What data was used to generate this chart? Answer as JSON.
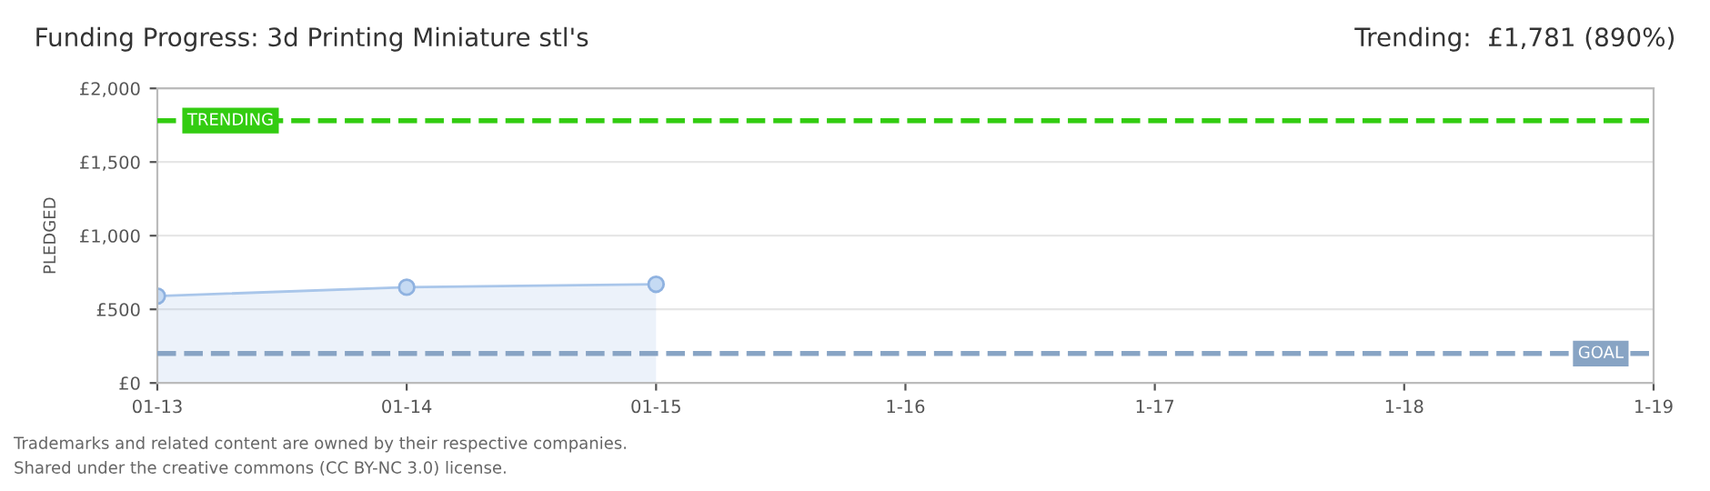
{
  "chart_data": {
    "type": "area",
    "title": "Funding Progress: 3d Printing Miniature stl's",
    "ylabel": "PLEDGED",
    "categories": [
      "01-13",
      "01-14",
      "01-15",
      "1-16",
      "1-17",
      "1-18",
      "1-19"
    ],
    "series": [
      {
        "color": "#a9c6ea",
        "values": [
          590,
          650,
          670,
          null,
          null,
          null,
          null
        ]
      }
    ],
    "ylim": [
      0,
      2000
    ],
    "yticks": [
      {
        "value": 0,
        "label": "£0"
      },
      {
        "value": 500,
        "label": "£500"
      },
      {
        "value": 1000,
        "label": "£1,000"
      },
      {
        "value": 1500,
        "label": "£1,500"
      },
      {
        "value": 2000,
        "label": "£2,000"
      }
    ],
    "ref_lines": [
      {
        "axis": "y",
        "value": 1781,
        "label": "TRENDING",
        "color": "#33cc11",
        "line_style": "dashed"
      },
      {
        "axis": "y",
        "value": 200,
        "label": "GOAL",
        "color": "#88a4c4",
        "line_style": "dashed"
      }
    ],
    "annotations": [
      "Trending:  £1,781 (890%)",
      "Trademarks and related content are owned by their respective companies.",
      "Shared under the creative commons (CC BY-NC 3.0) license."
    ],
    "grid": "y",
    "marker": "circle"
  }
}
